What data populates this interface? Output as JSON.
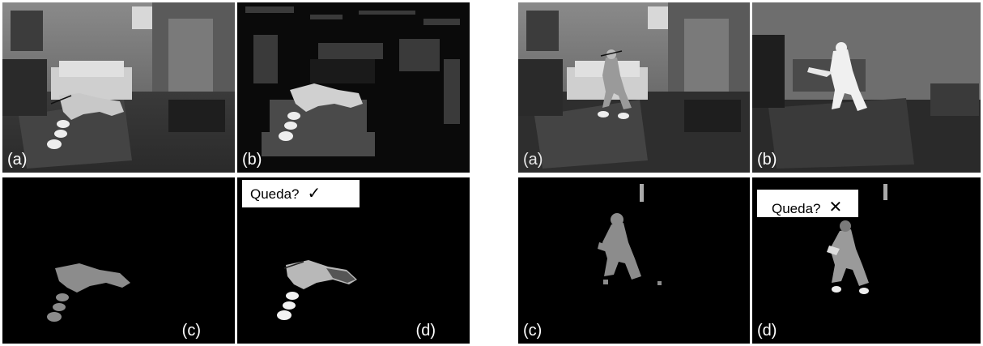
{
  "figure": {
    "left_group": {
      "a": {
        "label": "(a)"
      },
      "b": {
        "label": "(b)"
      },
      "c": {
        "label": "(c)"
      },
      "d": {
        "label": "(d)",
        "question": "Queda?",
        "mark": "✓"
      }
    },
    "right_group": {
      "a": {
        "label": "(a)"
      },
      "b": {
        "label": "(b)"
      },
      "c": {
        "label": "(c)"
      },
      "d": {
        "label": "(d)",
        "question": "Queda?",
        "mark": "✕"
      }
    }
  }
}
